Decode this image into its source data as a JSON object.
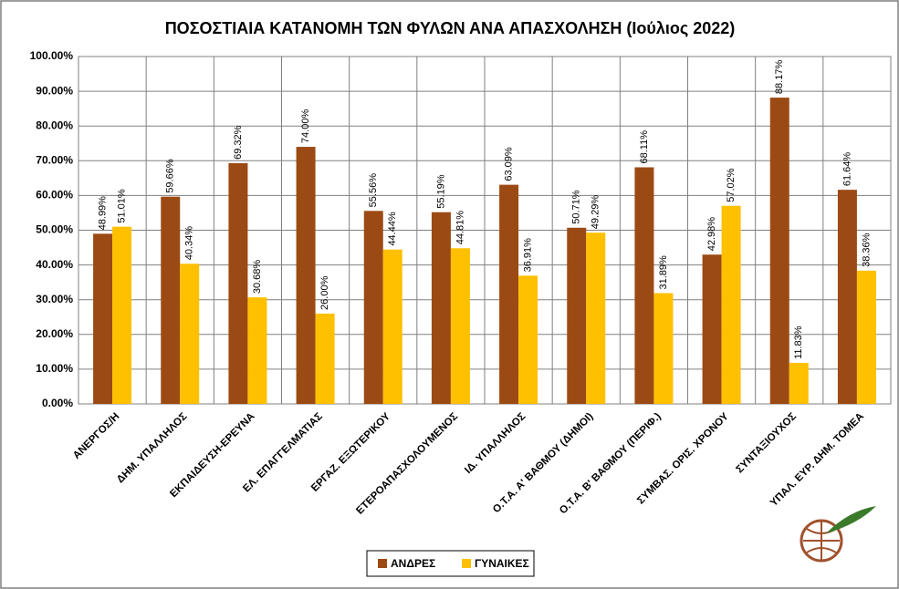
{
  "chart_data": {
    "type": "bar",
    "title": "ΠΟΣΟΣΤΙΑΙΑ ΚΑΤΑΝΟΜΗ ΤΩΝ ΦΥΛΩΝ ΑΝΑ ΑΠΑΣΧΟΛΗΣΗ (Ιούλιος 2022)",
    "categories": [
      "ΑΝΕΡΓΟΣ/Η",
      "ΔΗΜ. ΥΠΑΛΛΗΛΟΣ",
      "ΕΚΠΑΙΔΕΥΣΗ-ΕΡΕΥΝΑ",
      "ΕΛ. ΕΠΑΓΓΕΛΜΑΤΙΑΣ",
      "ΕΡΓΑΖ. ΕΞΩΤΕΡΙΚΟΥ",
      "ΕΤΕΡΟΑΠΑΣΧΟΛΟΥΜΕΝΟΣ",
      "ΙΔ. ΥΠΑΛΛΗΛΟΣ",
      "Ο.Τ.Α. Α' ΒΑΘΜΟΥ (ΔΗΜΟΙ)",
      "Ο.Τ.Α. Β' ΒΑΘΜΟΥ (ΠΕΡΙΦ.)",
      "ΣΥΜΒΑΣ. ΟΡΙΣ. ΧΡΟΝΟΥ",
      "ΣΥΝΤΑΞΙΟΥΧΟΣ",
      "ΥΠΑΛ. ΕΥΡ. ΔΗΜ. ΤΟΜΕΑ"
    ],
    "series": [
      {
        "name": "ΑΝΔΡΕΣ",
        "color": "#9c4a14",
        "values": [
          48.99,
          59.66,
          69.32,
          74.0,
          55.56,
          55.19,
          63.09,
          50.71,
          68.11,
          42.98,
          88.17,
          61.64
        ],
        "value_labels": [
          "48.99%",
          "59.66%",
          "69.32%",
          "74.00%",
          "55.56%",
          "55.19%",
          "63.09%",
          "50.71%",
          "68.11%",
          "42.98%",
          "88.17%",
          "61.64%"
        ]
      },
      {
        "name": "ΓΥΝΑΙΚΕΣ",
        "color": "#ffc000",
        "values": [
          51.01,
          40.34,
          30.68,
          26.0,
          44.44,
          44.81,
          36.91,
          49.29,
          31.89,
          57.02,
          11.83,
          38.36
        ],
        "value_labels": [
          "51.01%",
          "40.34%",
          "30.68%",
          "26.00%",
          "44.44%",
          "44.81%",
          "36.91%",
          "49.29%",
          "31.89%",
          "57.02%",
          "11.83%",
          "38.36%"
        ]
      }
    ],
    "ylim": [
      0,
      100
    ],
    "yticks": [
      {
        "value": 0,
        "label": "0.00%"
      },
      {
        "value": 10,
        "label": "10.00%"
      },
      {
        "value": 20,
        "label": "20.00%"
      },
      {
        "value": 30,
        "label": "30.00%"
      },
      {
        "value": 40,
        "label": "40.00%"
      },
      {
        "value": 50,
        "label": "50.00%"
      },
      {
        "value": 60,
        "label": "60.00%"
      },
      {
        "value": 70,
        "label": "70.00%"
      },
      {
        "value": 80,
        "label": "80.00%"
      },
      {
        "value": 90,
        "label": "90.00%"
      },
      {
        "value": 100,
        "label": "100.00%"
      }
    ],
    "grid": true
  }
}
